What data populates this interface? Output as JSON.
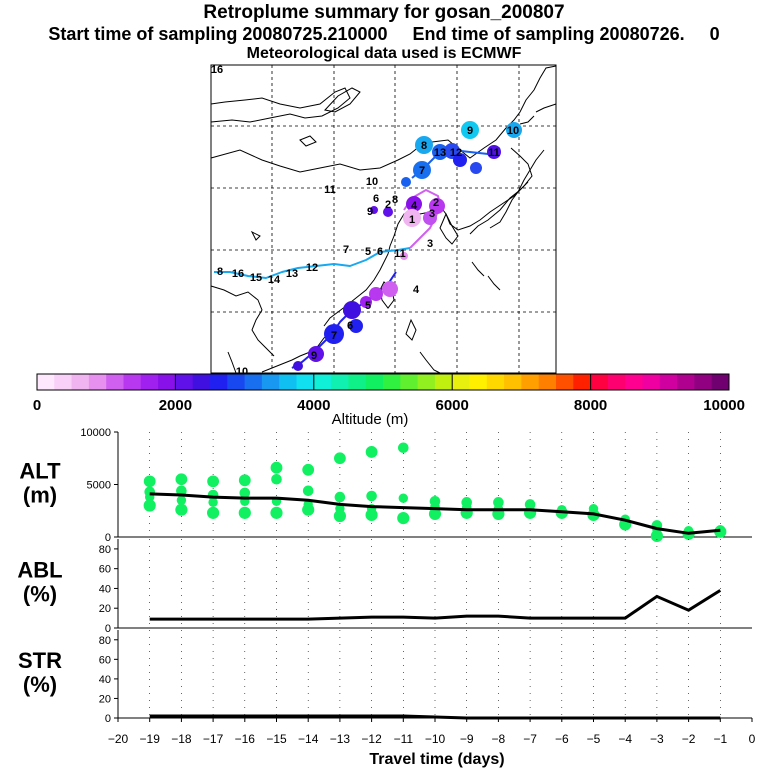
{
  "header": {
    "title": "Retroplume summary for gosan_200807",
    "line2": "Start time of sampling 20080725.210000     End time of sampling 20080726.     0",
    "line3": "Meteorological data used is ECMWF"
  },
  "colorbar": {
    "label": "Altitude (m)",
    "tick_labels": [
      "0",
      "2000",
      "4000",
      "6000",
      "8000",
      "10000"
    ],
    "colors": [
      "#fde8fd",
      "#f8d0f8",
      "#f0b4f0",
      "#e890f0",
      "#d060f0",
      "#b838f0",
      "#a020f0",
      "#8810e8",
      "#6010e8",
      "#4010e0",
      "#2020f0",
      "#1848f0",
      "#1870f0",
      "#1898f0",
      "#10c0f0",
      "#10e0f0",
      "#10f0d8",
      "#10f0b0",
      "#10f088",
      "#10f060",
      "#30f040",
      "#60f030",
      "#90f020",
      "#c0f010",
      "#e8f010",
      "#fff000",
      "#ffd800",
      "#ffc000",
      "#ffa000",
      "#ff8000",
      "#ff5000",
      "#ff2000",
      "#ff0040",
      "#ff0070",
      "#ff0090",
      "#f000a0",
      "#d000a0",
      "#b00090",
      "#900080",
      "#700070"
    ]
  },
  "map": {
    "labels": [
      {
        "t": "16",
        "c": "#c8f000"
      },
      {
        "t": "10",
        "c": "#18a8f0"
      },
      {
        "t": "9",
        "c": "#10c8f0"
      },
      {
        "t": "8",
        "c": "#1890f0"
      },
      {
        "t": "13",
        "c": "#1860f0"
      },
      {
        "t": "12",
        "c": "#1860f0"
      },
      {
        "t": "11",
        "c": "#5010e8"
      },
      {
        "t": "7",
        "c": "#1870f0"
      },
      {
        "t": "11",
        "c": "#10d0f0"
      },
      {
        "t": "10",
        "c": "#1870f0"
      },
      {
        "t": "8",
        "c": "#2020f0"
      },
      {
        "t": "6",
        "c": "#4010e0"
      },
      {
        "t": "9",
        "c": "#6010e8"
      },
      {
        "t": "4",
        "c": "#8810e8"
      },
      {
        "t": "2",
        "c": "#b838f0"
      },
      {
        "t": "1",
        "c": "#f0b4f0"
      },
      {
        "t": "3",
        "c": "#f0b4f0"
      },
      {
        "t": "5",
        "c": "#e890f0"
      },
      {
        "t": "4",
        "c": "#e890f0"
      },
      {
        "t": "3",
        "c": "#b838f0"
      },
      {
        "t": "2",
        "c": "#d060f0"
      },
      {
        "t": "6",
        "c": "#4010e0"
      },
      {
        "t": "7",
        "c": "#2020f0"
      },
      {
        "t": "9",
        "c": "#2020f0"
      },
      {
        "t": "10",
        "c": "#4010e0"
      },
      {
        "t": "8",
        "c": "#6010e8"
      },
      {
        "t": "16",
        "c": "#10e0f0"
      },
      {
        "t": "15",
        "c": "#10d0f0"
      },
      {
        "t": "14",
        "c": "#18a8f0"
      },
      {
        "t": "13",
        "c": "#1898f0"
      },
      {
        "t": "12",
        "c": "#1898f0"
      },
      {
        "t": "11",
        "c": "#1898f0"
      },
      {
        "t": "6",
        "c": "#1870f0"
      },
      {
        "t": "5",
        "c": "#1870f0"
      },
      {
        "t": "7",
        "c": "#1898f0"
      }
    ]
  },
  "chart_data": [
    {
      "type": "scatter",
      "name": "ALT",
      "ylabel": "ALT\n(m)",
      "ylim": [
        0,
        10000
      ],
      "yticks": [
        0,
        5000,
        10000
      ],
      "xlim": [
        -20,
        0
      ],
      "x": [
        -19,
        -18,
        -17,
        -16,
        -15,
        -14,
        -13,
        -12,
        -11,
        -10,
        -9,
        -8,
        -7,
        -6,
        -5,
        -4,
        -3,
        -2,
        -1
      ],
      "median": [
        4100,
        4000,
        3800,
        3700,
        3700,
        3500,
        3100,
        2900,
        2800,
        2700,
        2600,
        2600,
        2600,
        2400,
        2200,
        1600,
        800,
        350,
        650
      ],
      "clusters": [
        [
          5300,
          4300,
          3800,
          3000
        ],
        [
          5500,
          4400,
          3500,
          2600
        ],
        [
          5300,
          4000,
          3300,
          2300
        ],
        [
          5400,
          4200,
          3400,
          2300
        ],
        [
          6600,
          5500,
          3400,
          2300
        ],
        [
          6400,
          4400,
          3100,
          2600
        ],
        [
          7500,
          3800,
          2700,
          2000
        ],
        [
          8100,
          3900,
          2700,
          2100
        ],
        [
          8500,
          3700,
          1800
        ],
        [
          3400,
          2900,
          2200
        ],
        [
          3300,
          2800,
          2300
        ],
        [
          3300,
          2700,
          2200
        ],
        [
          3100,
          2600,
          2300
        ],
        [
          2600,
          2300
        ],
        [
          2700,
          2100
        ],
        [
          1700,
          1200
        ],
        [
          1100,
          700,
          100
        ],
        [
          600,
          300
        ],
        [
          700,
          500
        ]
      ]
    },
    {
      "type": "line",
      "name": "ABL",
      "ylabel": "ABL\n(%)",
      "ylim": [
        0,
        90
      ],
      "yticks": [
        0,
        20,
        40,
        60,
        80
      ],
      "xlim": [
        -20,
        0
      ],
      "x": [
        -19,
        -18,
        -17,
        -16,
        -15,
        -14,
        -13,
        -12,
        -11,
        -10,
        -9,
        -8,
        -7,
        -6,
        -5,
        -4,
        -3,
        -2,
        -1
      ],
      "values": [
        9,
        9,
        9,
        9,
        9,
        9,
        10,
        11,
        11,
        10,
        12,
        12,
        10,
        10,
        10,
        10,
        32,
        18,
        38
      ]
    },
    {
      "type": "line",
      "name": "STR",
      "ylabel": "STR\n(%)",
      "ylim": [
        0,
        90
      ],
      "yticks": [
        0,
        20,
        40,
        60,
        80
      ],
      "xlim": [
        -20,
        0
      ],
      "x": [
        -19,
        -18,
        -17,
        -16,
        -15,
        -14,
        -13,
        -12,
        -11,
        -10,
        -9,
        -8,
        -7,
        -6,
        -5,
        -4,
        -3,
        -2,
        -1
      ],
      "values": [
        2,
        2,
        2,
        2,
        2,
        2,
        2,
        2,
        2,
        1,
        0,
        0,
        0,
        0,
        0,
        0,
        0,
        0,
        0
      ],
      "xlabel": "Travel time (days)",
      "xticks": [
        -20,
        -19,
        -18,
        -17,
        -16,
        -15,
        -14,
        -13,
        -12,
        -11,
        -10,
        -9,
        -8,
        -7,
        -6,
        -5,
        -4,
        -3,
        -2,
        -1,
        0
      ]
    }
  ]
}
